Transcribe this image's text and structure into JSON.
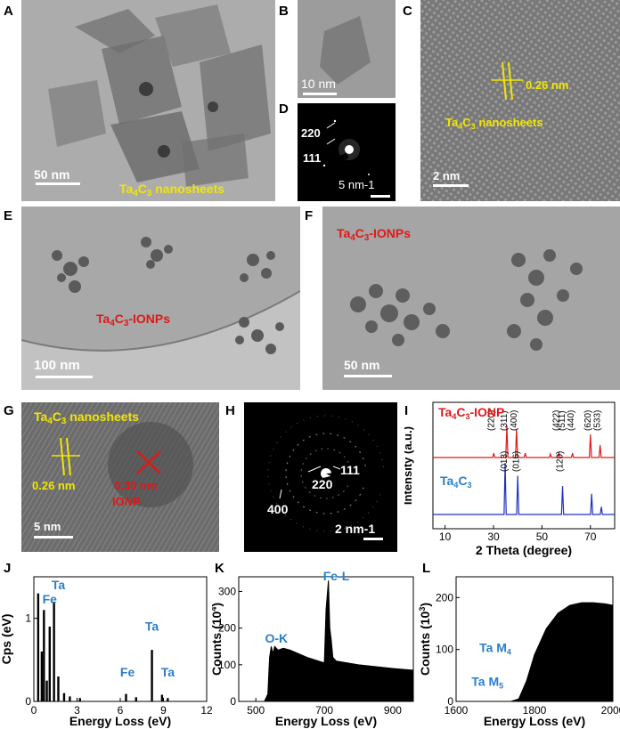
{
  "panel_letters": [
    "A",
    "B",
    "C",
    "D",
    "E",
    "F",
    "G",
    "H",
    "I",
    "J",
    "K",
    "L"
  ],
  "panelA": {
    "scale": "50 nm",
    "label_pre": "Ta",
    "label_sub": "4",
    "label_mid": "C",
    "label_sub2": "3",
    "label_post": " nanosheets"
  },
  "panelB": {
    "scale": "10 nm"
  },
  "panelC": {
    "spacing": "0.26 nm",
    "label_pre": "Ta",
    "label_sub": "4",
    "label_mid": "C",
    "label_sub2": "3",
    "label_post": " nanosheets",
    "scale": "2 nm"
  },
  "panelD": {
    "ring1": "220",
    "ring2": "111",
    "scale": "5 nm-1"
  },
  "panelE": {
    "label_pre": "Ta",
    "label_sub": "4",
    "label_mid": "C",
    "label_sub2": "3",
    "label_post": "-IONPs",
    "scale": "100 nm"
  },
  "panelF": {
    "label_pre": "Ta",
    "label_sub": "4",
    "label_mid": "C",
    "label_sub2": "3",
    "label_post": "-IONPs",
    "scale": "50 nm"
  },
  "panelG": {
    "label_pre": "Ta",
    "label_sub": "4",
    "label_mid": "C",
    "label_sub2": "3",
    "label_post": " nanosheets",
    "spacing1": "0.26 nm",
    "spacing2": "0.30 nm",
    "ionp": "IONP",
    "scale": "5 nm"
  },
  "panelH": {
    "ring1": "111",
    "ring2": "220",
    "ring3": "400",
    "scale": "2 nm-1"
  },
  "chart_data": [
    {
      "panel": "I",
      "type": "line",
      "xlabel": "2 Theta (degree)",
      "ylabel": "Intensity (a.u.)",
      "xlim": [
        5,
        80
      ],
      "xticks": [
        10,
        30,
        50,
        70
      ],
      "series": [
        {
          "name": "Ta4C3-IONP",
          "color": "#e01818",
          "peaks": [
            [
              30.1,
              0.12
            ],
            [
              35.5,
              0.9
            ],
            [
              39.5,
              0.8
            ],
            [
              43.1,
              0.12
            ],
            [
              53.5,
              0.1
            ],
            [
              57.0,
              0.15
            ],
            [
              62.6,
              0.12
            ],
            [
              70.0,
              0.65
            ],
            [
              74.0,
              0.35
            ]
          ],
          "peak_labels": [
            {
              "x": 30.1,
              "text": "(220)"
            },
            {
              "x": 35.5,
              "text": "(311)"
            },
            {
              "x": 39.5,
              "text": "(400)"
            },
            {
              "x": 57.0,
              "text": "(422)"
            },
            {
              "x": 59.5,
              "text": "(511)"
            },
            {
              "x": 63.0,
              "text": "(440)"
            },
            {
              "x": 70.0,
              "text": "(620)"
            },
            {
              "x": 74.0,
              "text": "(533)"
            }
          ]
        },
        {
          "name": "Ta4C3",
          "color": "#2030c0",
          "peaks": [
            [
              34.8,
              1.0
            ],
            [
              40.0,
              0.75
            ],
            [
              58.5,
              0.55
            ],
            [
              70.5,
              0.4
            ],
            [
              74.5,
              0.15
            ]
          ],
          "peak_labels": [
            {
              "x": 35.5,
              "text": "(013)"
            },
            {
              "x": 40.5,
              "text": "(016)"
            },
            {
              "x": 58.5,
              "text": "(120)"
            }
          ]
        }
      ],
      "legend_texts": {
        "top_pre": "Ta",
        "top_sub": "4",
        "top_mid": "C",
        "top_sub2": "3",
        "top_post": "-IONP",
        "bottom_pre": "Ta",
        "bottom_sub": "4",
        "bottom_mid": "C",
        "bottom_sub2": "3"
      }
    },
    {
      "panel": "J",
      "type": "bar",
      "xlabel": "Energy Loss (eV)",
      "ylabel": "Cps (eV)",
      "xlim": [
        0,
        12
      ],
      "ylim": [
        0,
        1.5
      ],
      "xticks": [
        0,
        3,
        6,
        9,
        12
      ],
      "yticks": [
        0,
        1
      ],
      "x": [
        0.3,
        0.55,
        0.7,
        0.9,
        1.1,
        1.4,
        1.7,
        2.1,
        2.5,
        3.2,
        6.4,
        7.1,
        8.2,
        8.9,
        9.3
      ],
      "values": [
        1.3,
        0.6,
        1.1,
        0.25,
        0.9,
        1.2,
        0.3,
        0.1,
        0.06,
        0.04,
        0.09,
        0.05,
        0.62,
        0.08,
        0.04
      ],
      "annotations": [
        {
          "x": 1.1,
          "y": 1.18,
          "text": "Fe"
        },
        {
          "x": 1.7,
          "y": 1.35,
          "text": "Ta"
        },
        {
          "x": 8.2,
          "y": 0.85,
          "text": "Ta"
        },
        {
          "x": 6.5,
          "y": 0.3,
          "text": "Fe"
        },
        {
          "x": 9.3,
          "y": 0.3,
          "text": "Ta"
        }
      ]
    },
    {
      "panel": "K",
      "type": "area",
      "xlabel": "Energy Loss (eV)",
      "ylabel": "Counts (10",
      "ylabel_sup": "4",
      "ylabel_end": ")",
      "xlim": [
        450,
        960
      ],
      "ylim": [
        0,
        340
      ],
      "xticks": [
        500,
        700,
        900
      ],
      "yticks": [
        0,
        100,
        200,
        300
      ],
      "x": [
        450,
        525,
        535,
        540,
        545,
        550,
        555,
        565,
        580,
        600,
        650,
        700,
        705,
        712,
        716,
        720,
        725,
        735,
        800,
        900,
        960
      ],
      "y": [
        0,
        0,
        20,
        120,
        150,
        130,
        150,
        140,
        145,
        140,
        120,
        105,
        250,
        330,
        200,
        170,
        120,
        110,
        100,
        90,
        85
      ],
      "annotations": [
        {
          "x": 560,
          "y": 160,
          "text": "O-K"
        },
        {
          "x": 735,
          "y": 330,
          "text": "Fe-L"
        }
      ]
    },
    {
      "panel": "L",
      "type": "area",
      "xlabel": "Energy Loss (eV)",
      "ylabel": "Counts (10",
      "ylabel_sup": "3",
      "ylabel_end": ")",
      "xlim": [
        1600,
        2000
      ],
      "ylim": [
        0,
        240
      ],
      "xticks": [
        1600,
        1800,
        2000
      ],
      "yticks": [
        0,
        100,
        200
      ],
      "x": [
        1600,
        1740,
        1760,
        1780,
        1800,
        1830,
        1860,
        1890,
        1920,
        1950,
        1980,
        2000
      ],
      "y": [
        0,
        0,
        5,
        40,
        90,
        140,
        170,
        185,
        190,
        190,
        188,
        185
      ],
      "annotations": [
        {
          "x": 1700,
          "y": 95,
          "text": "Ta M",
          "sub": "4"
        },
        {
          "x": 1680,
          "y": 30,
          "text": "Ta M",
          "sub": "5"
        }
      ]
    }
  ],
  "colors": {
    "yellow": "#f2e600",
    "red": "#e01818",
    "blue_text": "#2a7fc8",
    "line_blue": "#2030c0"
  }
}
